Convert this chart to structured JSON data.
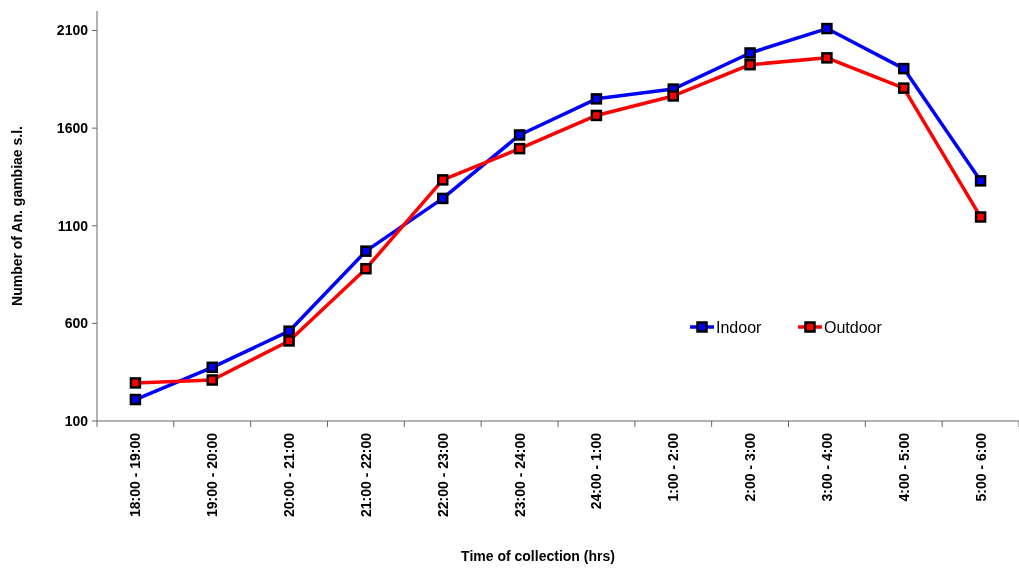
{
  "chart_data": {
    "type": "line",
    "xlabel": "Time of collection (hrs)",
    "ylabel": "Number of An. gambiae s.l.",
    "categories": [
      "18:00 - 19:00",
      "19:00 - 20:00",
      "20:00 - 21:00",
      "21:00 - 22:00",
      "22:00 - 23:00",
      "23:00 - 24:00",
      "24:00 - 1:00",
      "1:00 - 2:00",
      "2:00 - 3:00",
      "3:00 - 4:00",
      "4:00 - 5:00",
      "5:00 - 6:00"
    ],
    "series": [
      {
        "name": "Indoor",
        "color": "#0000ff",
        "values": [
          210,
          375,
          560,
          970,
          1240,
          1565,
          1750,
          1800,
          1985,
          2110,
          1905,
          1330
        ]
      },
      {
        "name": "Outdoor",
        "color": "#ff0000",
        "values": [
          295,
          310,
          510,
          880,
          1335,
          1495,
          1665,
          1765,
          1925,
          1960,
          1805,
          1145
        ]
      }
    ],
    "ylim": [
      100,
      2200
    ],
    "yticks": [
      100,
      600,
      1100,
      1600,
      2100
    ],
    "grid": false,
    "legend": "right",
    "marker": "square",
    "line_style": "solid"
  }
}
